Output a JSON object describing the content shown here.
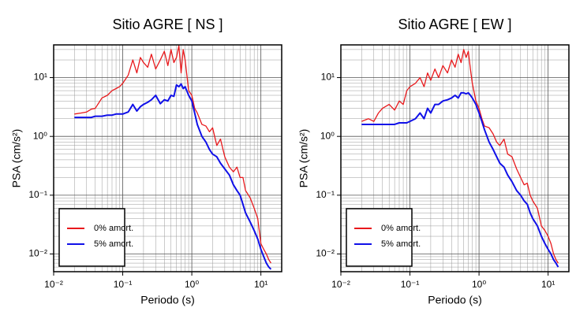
{
  "chart_data": [
    {
      "type": "line",
      "title": "Sitio AGRE [ NS ]",
      "xlabel": "Periodo (s)",
      "ylabel": "PSA (cm/s²)",
      "xscale": "log",
      "yscale": "log",
      "grid": true,
      "legend": "lower left",
      "xlim": [
        0.01,
        20
      ],
      "ylim": [
        0.005,
        36
      ],
      "xticks": [
        {
          "value": 0.01,
          "label": "10⁻²"
        },
        {
          "value": 0.1,
          "label": "10⁻¹"
        },
        {
          "value": 1,
          "label": "10⁰"
        },
        {
          "value": 10,
          "label": "10¹"
        }
      ],
      "yticks": [
        {
          "value": 0.01,
          "label": "10⁻²"
        },
        {
          "value": 0.1,
          "label": "10⁻¹"
        },
        {
          "value": 1,
          "label": "10⁰"
        },
        {
          "value": 10,
          "label": "10¹"
        }
      ],
      "x": [
        0.02,
        0.025,
        0.03,
        0.035,
        0.04,
        0.05,
        0.06,
        0.07,
        0.08,
        0.09,
        0.1,
        0.12,
        0.14,
        0.16,
        0.18,
        0.2,
        0.23,
        0.26,
        0.3,
        0.35,
        0.4,
        0.45,
        0.5,
        0.55,
        0.6,
        0.65,
        0.7,
        0.75,
        0.8,
        0.9,
        1,
        1.1,
        1.2,
        1.4,
        1.6,
        1.8,
        2,
        2.3,
        2.6,
        3,
        3.5,
        4,
        4.5,
        5,
        5.5,
        6,
        7,
        8,
        9,
        10,
        11,
        12,
        13,
        14
      ],
      "series": [
        {
          "name": "0% amort.",
          "color": "#e8191c",
          "values": [
            2.4,
            2.5,
            2.6,
            2.9,
            3,
            4.5,
            5,
            6,
            6.5,
            7,
            8,
            11,
            20,
            12,
            22,
            18,
            15,
            25,
            14,
            20,
            28,
            16,
            30,
            18,
            22,
            35,
            12,
            30,
            20,
            6,
            5,
            3,
            2.5,
            1.6,
            1.5,
            1.2,
            1.4,
            0.7,
            0.9,
            0.45,
            0.3,
            0.25,
            0.3,
            0.2,
            0.2,
            0.12,
            0.09,
            0.06,
            0.04,
            0.015,
            0.012,
            0.01,
            0.008,
            0.007
          ]
        },
        {
          "name": "5% amort.",
          "color": "#1010e8",
          "values": [
            2.1,
            2.1,
            2.1,
            2.1,
            2.2,
            2.2,
            2.3,
            2.3,
            2.4,
            2.4,
            2.4,
            2.6,
            3.5,
            2.7,
            3.2,
            3.5,
            3.8,
            4.2,
            5,
            3.6,
            4.2,
            4,
            5,
            4.8,
            7.5,
            7,
            7.8,
            6.5,
            7,
            5,
            4,
            2.5,
            1.6,
            1,
            0.8,
            0.6,
            0.5,
            0.45,
            0.35,
            0.28,
            0.22,
            0.15,
            0.12,
            0.1,
            0.07,
            0.05,
            0.035,
            0.025,
            0.018,
            0.012,
            0.009,
            0.007,
            0.006,
            0.0055
          ]
        }
      ]
    },
    {
      "type": "line",
      "title": "Sitio AGRE [ EW ]",
      "xlabel": "Periodo (s)",
      "ylabel": "PSA (cm/s²)",
      "xscale": "log",
      "yscale": "log",
      "grid": true,
      "legend": "lower left",
      "xlim": [
        0.01,
        20
      ],
      "ylim": [
        0.005,
        36
      ],
      "xticks": [
        {
          "value": 0.01,
          "label": "10⁻²"
        },
        {
          "value": 0.1,
          "label": "10⁻¹"
        },
        {
          "value": 1,
          "label": "10⁰"
        },
        {
          "value": 10,
          "label": "10¹"
        }
      ],
      "yticks": [
        {
          "value": 0.01,
          "label": "10⁻²"
        },
        {
          "value": 0.1,
          "label": "10⁻¹"
        },
        {
          "value": 1,
          "label": "10⁰"
        },
        {
          "value": 10,
          "label": "10¹"
        }
      ],
      "x": [
        0.02,
        0.025,
        0.03,
        0.035,
        0.04,
        0.05,
        0.06,
        0.07,
        0.08,
        0.09,
        0.1,
        0.12,
        0.14,
        0.16,
        0.18,
        0.2,
        0.23,
        0.26,
        0.3,
        0.35,
        0.4,
        0.45,
        0.5,
        0.55,
        0.6,
        0.65,
        0.7,
        0.75,
        0.8,
        0.9,
        1,
        1.1,
        1.2,
        1.4,
        1.6,
        1.8,
        2,
        2.3,
        2.6,
        3,
        3.5,
        4,
        4.5,
        5,
        5.5,
        6,
        7,
        8,
        9,
        10,
        11,
        12,
        13,
        14
      ],
      "series": [
        {
          "name": "0% amort.",
          "color": "#e8191c",
          "values": [
            1.8,
            2,
            1.8,
            2.5,
            3,
            3.5,
            2.8,
            4,
            3.5,
            6,
            7,
            8,
            10,
            7,
            12,
            9,
            14,
            10,
            16,
            12,
            20,
            15,
            25,
            18,
            30,
            22,
            28,
            14,
            8,
            4,
            3,
            2,
            1.5,
            1.4,
            1.1,
            0.8,
            0.7,
            0.9,
            0.5,
            0.45,
            0.28,
            0.2,
            0.15,
            0.16,
            0.1,
            0.08,
            0.06,
            0.03,
            0.025,
            0.02,
            0.015,
            0.01,
            0.008,
            0.007
          ]
        },
        {
          "name": "5% amort.",
          "color": "#1010e8",
          "values": [
            1.6,
            1.6,
            1.6,
            1.6,
            1.6,
            1.6,
            1.6,
            1.7,
            1.7,
            1.7,
            1.8,
            2,
            2.5,
            2,
            3,
            2.5,
            3.5,
            3.5,
            4,
            4.2,
            4.5,
            5,
            4.5,
            5.5,
            5.5,
            5.3,
            5.5,
            5,
            4.5,
            3.5,
            2.5,
            1.8,
            1.3,
            0.8,
            0.6,
            0.45,
            0.35,
            0.3,
            0.22,
            0.17,
            0.12,
            0.1,
            0.08,
            0.07,
            0.05,
            0.04,
            0.03,
            0.02,
            0.015,
            0.012,
            0.01,
            0.008,
            0.007,
            0.006
          ]
        }
      ]
    }
  ]
}
